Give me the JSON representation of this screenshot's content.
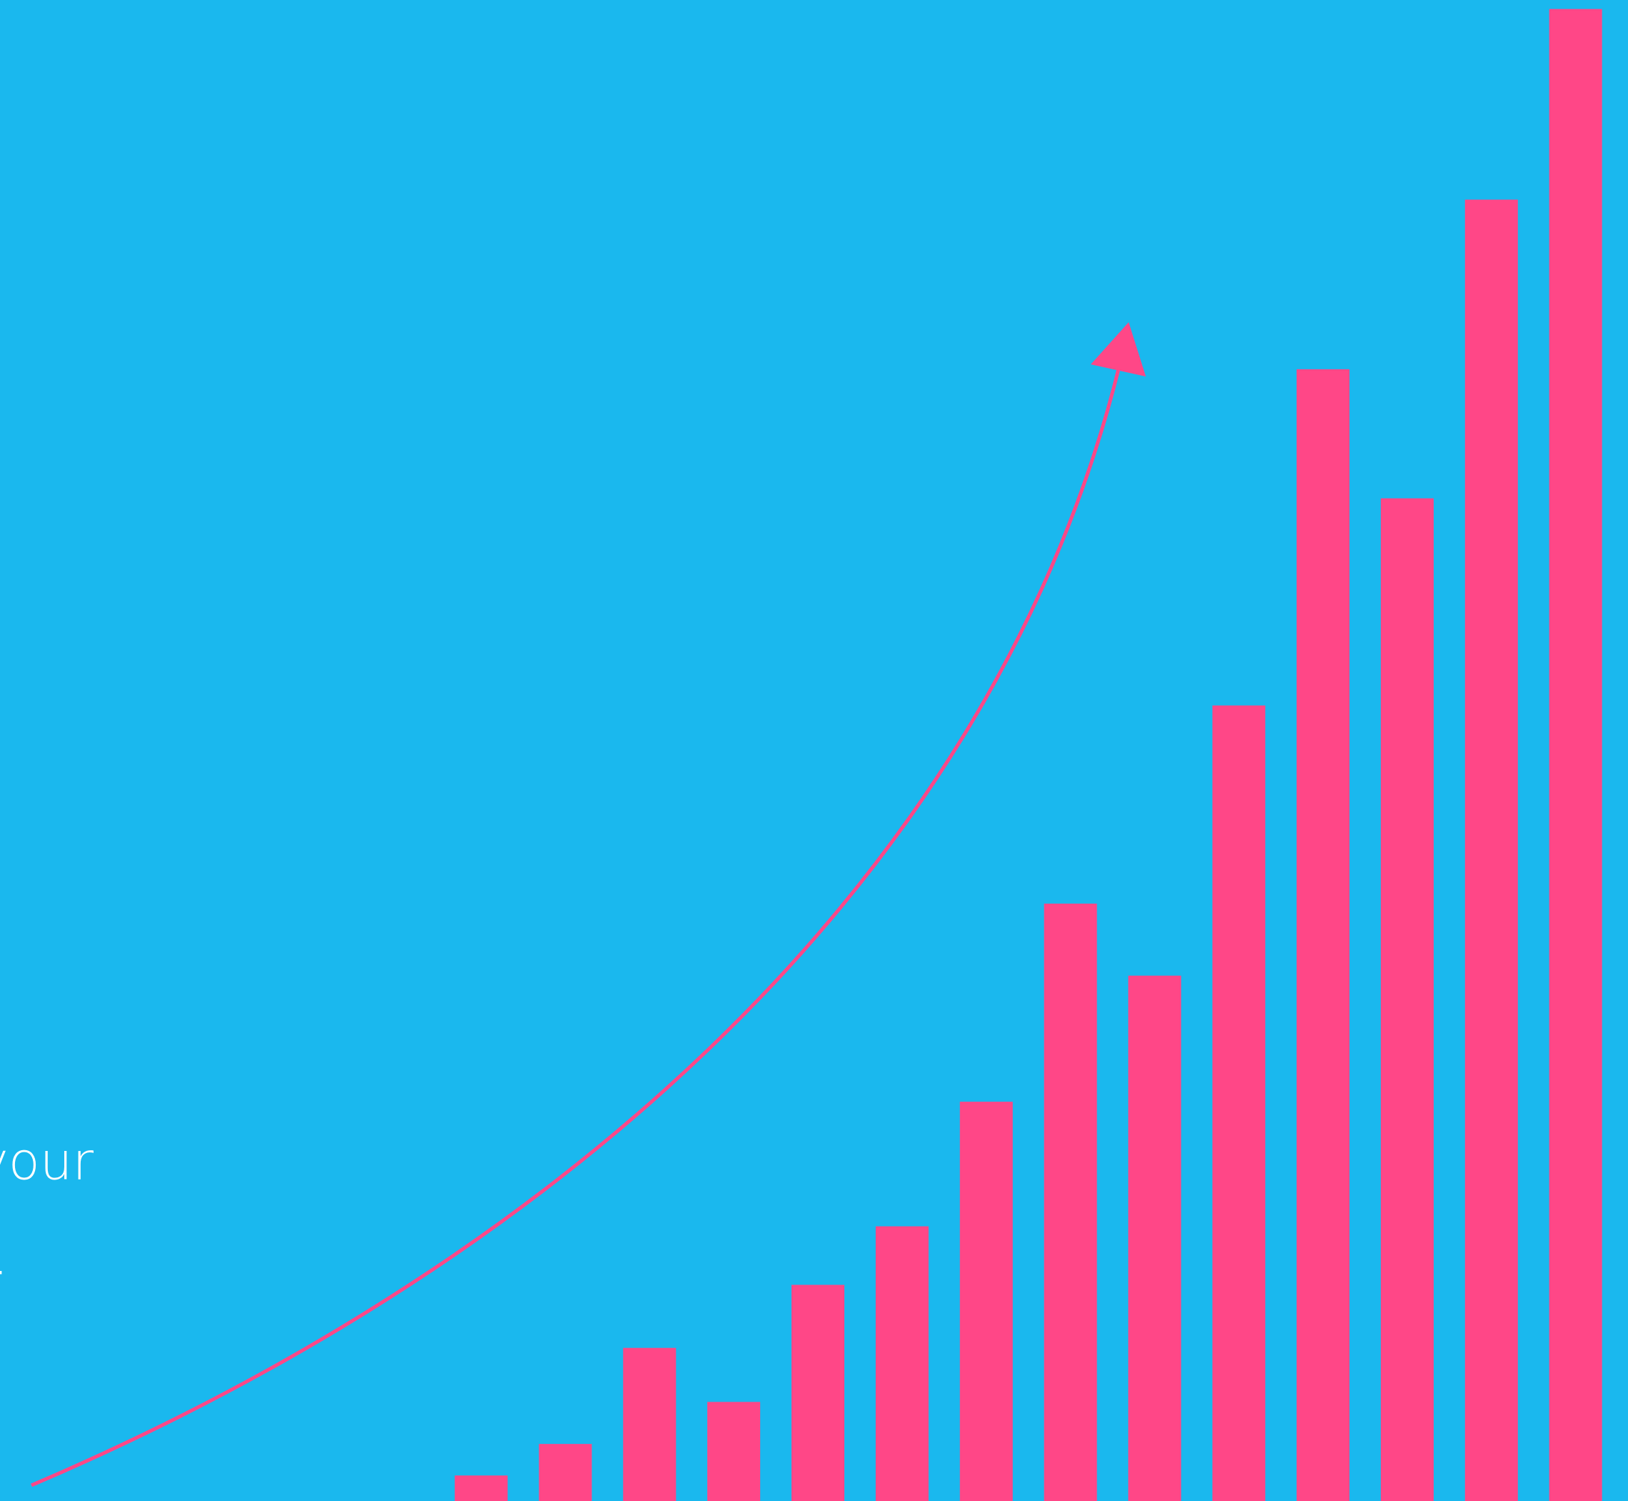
{
  "chart_data": {
    "type": "bar",
    "annotations": [
      "your",
      "."
    ],
    "categories": [
      null,
      null,
      null,
      null,
      null,
      null,
      null,
      null,
      null,
      null,
      null,
      null,
      null,
      null
    ],
    "values": [
      1.7,
      3.8,
      10.2,
      6.6,
      14.4,
      18.3,
      26.6,
      39.8,
      35.0,
      53.0,
      75.4,
      66.8,
      86.7,
      99.4
    ],
    "color": "#ff4787",
    "ylim": [
      0,
      100
    ]
  }
}
